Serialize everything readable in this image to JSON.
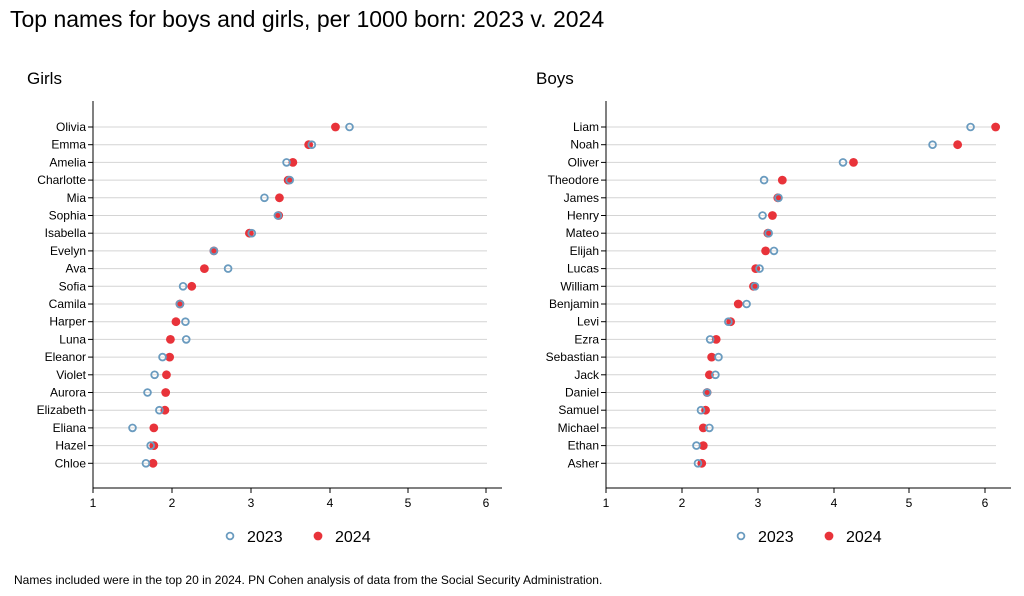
{
  "title": "Top names for boys and girls, per 1000 born: 2023 v. 2024",
  "note": "Names included were in the top 20 in 2024. PN Cohen analysis of data from the Social Security Administration.",
  "colors": {
    "y2023": "#6a9bbf",
    "y2024": "#e8333a",
    "grid": "#d4d4d4",
    "axis": "#000000"
  },
  "chart_data": [
    {
      "type": "scatter",
      "title": "Girls",
      "xlim": [
        1,
        6
      ],
      "xticks": [
        1,
        2,
        3,
        4,
        5,
        6
      ],
      "grid": true,
      "legend_position": "bottom",
      "series": [
        {
          "name": "2023",
          "marker": "hollow circle"
        },
        {
          "name": "2024",
          "marker": "filled circle"
        }
      ],
      "categories": [
        "Olivia",
        "Emma",
        "Amelia",
        "Charlotte",
        "Mia",
        "Sophia",
        "Isabella",
        "Evelyn",
        "Ava",
        "Sofia",
        "Camila",
        "Harper",
        "Luna",
        "Eleanor",
        "Violet",
        "Aurora",
        "Elizabeth",
        "Eliana",
        "Hazel",
        "Chloe"
      ],
      "values_2023": [
        4.25,
        3.77,
        3.45,
        3.49,
        3.17,
        3.34,
        3.01,
        2.53,
        2.71,
        2.14,
        2.1,
        2.17,
        2.18,
        1.88,
        1.78,
        1.69,
        1.84,
        1.5,
        1.73,
        1.67
      ],
      "values_2024": [
        4.07,
        3.73,
        3.53,
        3.47,
        3.36,
        3.35,
        2.98,
        2.53,
        2.41,
        2.25,
        2.1,
        2.05,
        1.98,
        1.97,
        1.93,
        1.92,
        1.91,
        1.77,
        1.77,
        1.76
      ]
    },
    {
      "type": "scatter",
      "title": "Boys",
      "xlim": [
        1,
        6.3
      ],
      "xticks": [
        1,
        2,
        3,
        4,
        5,
        6
      ],
      "grid": true,
      "legend_position": "bottom",
      "series": [
        {
          "name": "2023",
          "marker": "hollow circle"
        },
        {
          "name": "2024",
          "marker": "filled circle"
        }
      ],
      "categories": [
        "Liam",
        "Noah",
        "Oliver",
        "Theodore",
        "James",
        "Henry",
        "Mateo",
        "Elijah",
        "Lucas",
        "William",
        "Benjamin",
        "Levi",
        "Ezra",
        "Sebastian",
        "Jack",
        "Daniel",
        "Samuel",
        "Michael",
        "Ethan",
        "Asher"
      ],
      "values_2023": [
        5.81,
        5.31,
        4.12,
        3.08,
        3.27,
        3.06,
        3.14,
        3.21,
        3.02,
        2.96,
        2.85,
        2.61,
        2.37,
        2.48,
        2.44,
        2.33,
        2.25,
        2.36,
        2.19,
        2.21
      ],
      "values_2024": [
        6.14,
        5.64,
        4.26,
        3.32,
        3.26,
        3.19,
        3.13,
        3.1,
        2.97,
        2.94,
        2.74,
        2.64,
        2.45,
        2.39,
        2.36,
        2.33,
        2.31,
        2.28,
        2.28,
        2.26
      ]
    }
  ]
}
